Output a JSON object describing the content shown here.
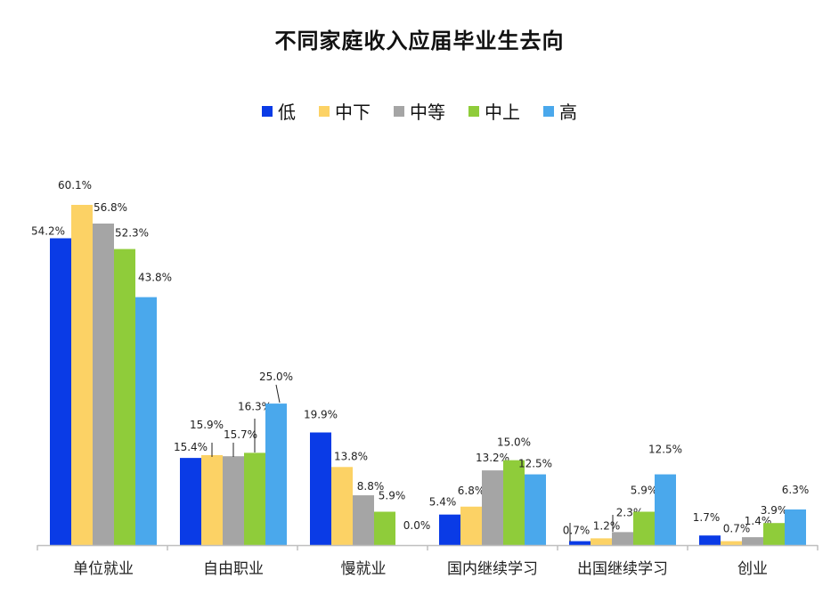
{
  "chart_data": {
    "type": "bar",
    "title": "不同家庭收入应届毕业生去向",
    "categories": [
      "单位就业",
      "自由职业",
      "慢就业",
      "国内继续学习",
      "出国继续学习",
      "创业"
    ],
    "series": [
      {
        "name": "低",
        "color": "#0a3be6",
        "values": [
          54.2,
          15.4,
          19.9,
          5.4,
          0.7,
          1.7
        ],
        "labels": [
          "54.2%",
          "15.4%",
          "19.9%",
          "5.4%",
          "0.7%",
          "1.7%"
        ]
      },
      {
        "name": "中下",
        "color": "#fcd265",
        "values": [
          60.1,
          15.9,
          13.8,
          6.8,
          1.2,
          0.7
        ],
        "labels": [
          "60.1%",
          "15.9%",
          "13.8%",
          "6.8%",
          "1.2%",
          "0.7%"
        ]
      },
      {
        "name": "中等",
        "color": "#a5a5a5",
        "values": [
          56.8,
          15.7,
          8.8,
          13.2,
          2.3,
          1.4
        ],
        "labels": [
          "56.8%",
          "15.7%",
          "8.8%",
          "13.2%",
          "2.3%",
          "1.4%"
        ]
      },
      {
        "name": "中上",
        "color": "#8fcc3a",
        "values": [
          52.3,
          16.3,
          5.9,
          15.0,
          5.9,
          3.9
        ],
        "labels": [
          "52.3%",
          "16.3%",
          "5.9%",
          "15.0%",
          "5.9%",
          "3.9%"
        ]
      },
      {
        "name": "高",
        "color": "#4aa8ec",
        "values": [
          43.8,
          25.0,
          0.0,
          12.5,
          12.5,
          6.3
        ],
        "labels": [
          "43.8%",
          "25.0%",
          "0.0%",
          "12.5%",
          "12.5%",
          "6.3%"
        ]
      }
    ],
    "ylim": [
      0,
      60.1
    ],
    "legend_position": "top-center",
    "grid": false,
    "xlabel": "",
    "ylabel": ""
  }
}
